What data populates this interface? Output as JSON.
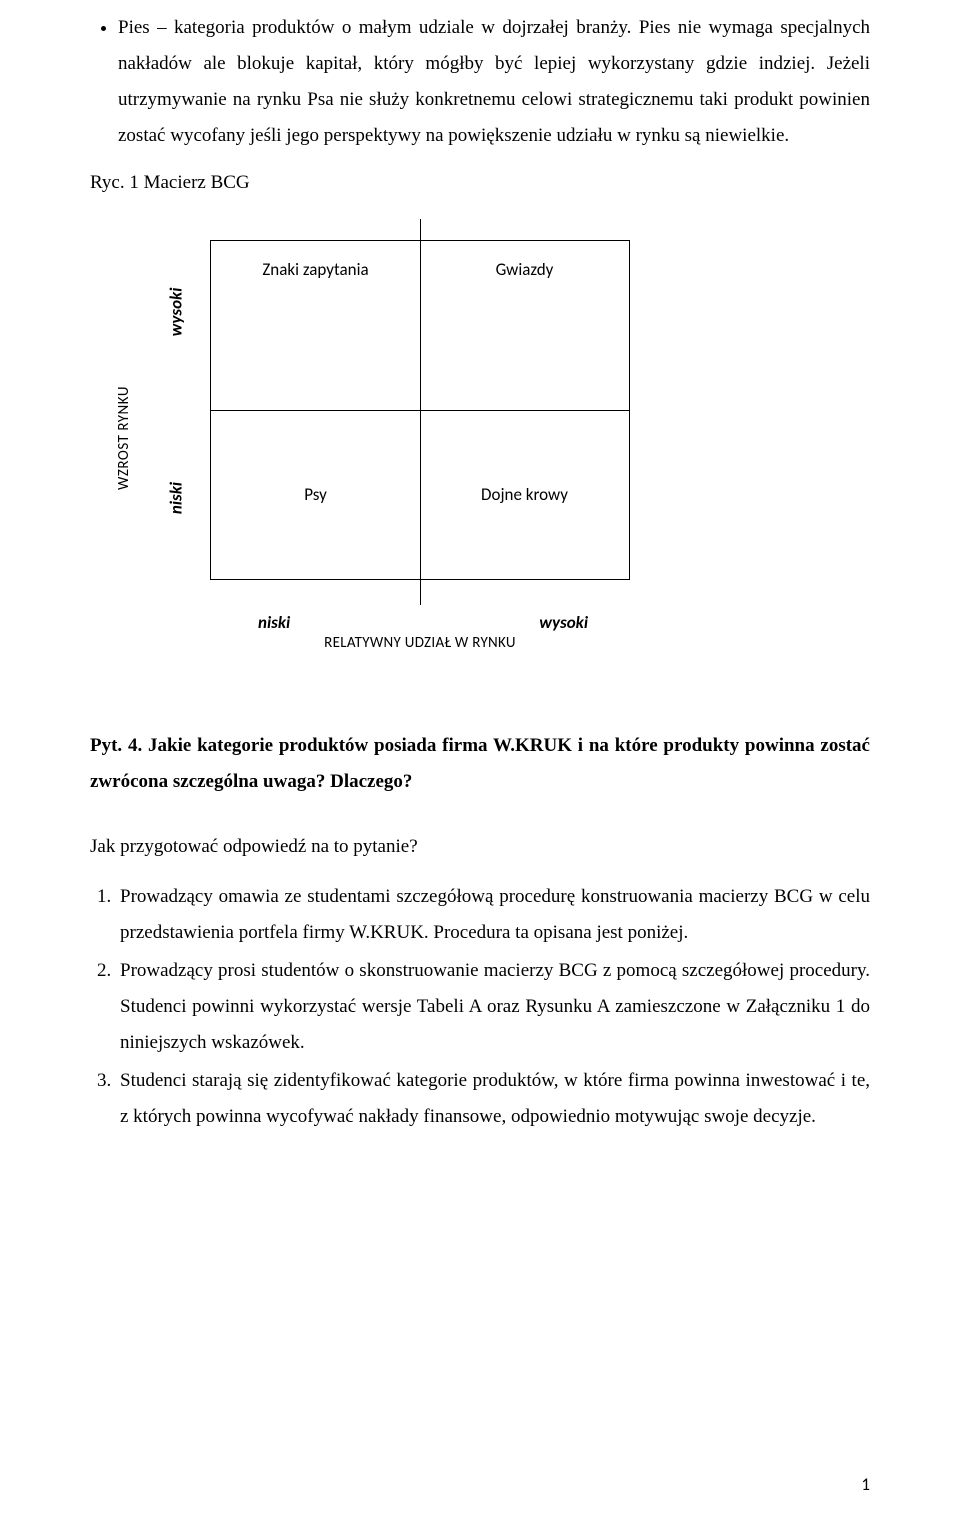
{
  "bullet": {
    "text": "Pies – kategoria produktów o małym udziale w dojrzałej branży. Pies nie wymaga specjalnych nakładów ale blokuje kapitał, który mógłby być lepiej wykorzystany gdzie indziej. Jeżeli utrzymywanie na rynku Psa nie służy konkretnemu celowi strategicznemu taki produkt powinien zostać wycofany jeśli jego perspektywy na powiększenie udziału w rynku są niewielkie."
  },
  "figure": {
    "label": "Ryc. 1 Macierz BCG",
    "y_axis": "WZROST RYNKU",
    "y_high": "wysoki",
    "y_low": "niski",
    "x_axis": "RELATYWNY UDZIAŁ W RYNKU",
    "x_low": "niski",
    "x_high": "wysoki",
    "cells": {
      "tl": "Znaki zapytania",
      "tr": "Gwiazdy",
      "bl": "Psy",
      "br": "Dojne krowy"
    }
  },
  "question": {
    "heading": "Pyt. 4. Jakie kategorie produktów posiada firma W.KRUK i na które produkty powinna zostać zwrócona szczególna uwaga? Dlaczego?",
    "sub": "Jak przygotować odpowiedź na to pytanie?",
    "steps": [
      "Prowadzący omawia ze studentami szczegółową procedurę konstruowania macierzy BCG w celu przedstawienia portfela firmy W.KRUK. Procedura ta opisana jest poniżej.",
      "Prowadzący prosi studentów o skonstruowanie macierzy BCG z pomocą szczegółowej procedury. Studenci powinni wykorzystać wersje Tabeli A oraz Rysunku A zamieszczone w Załączniku 1 do niniejszych wskazówek.",
      "Studenci starają się zidentyfikować kategorie produktów, w które firma powinna inwestować i te, z których powinna wycofywać nakłady finansowe, odpowiednio motywując swoje decyzje."
    ]
  },
  "page_number": "1"
}
